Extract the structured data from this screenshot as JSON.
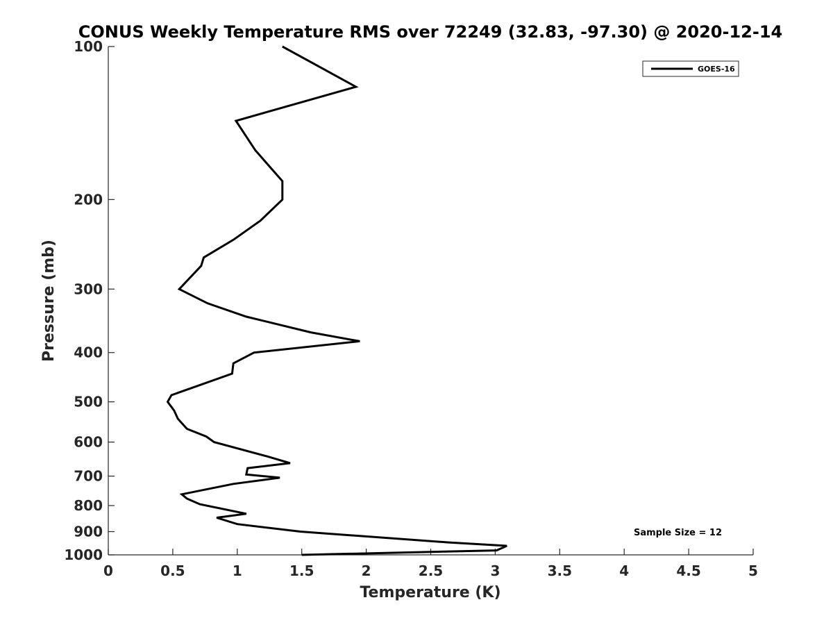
{
  "chart_data": {
    "type": "line",
    "title": "CONUS Weekly Temperature RMS over 72249 (32.83, -97.30) @ 2020-12-14",
    "xlabel": "Temperature (K)",
    "ylabel": "Pressure (mb)",
    "xlim": [
      0,
      5
    ],
    "ylim": [
      100,
      1000
    ],
    "yscale": "log",
    "yreversed": true,
    "grid": false,
    "legend_position": "top-right",
    "xticks": [
      0,
      0.5,
      1,
      1.5,
      2,
      2.5,
      3,
      3.5,
      4,
      4.5,
      5
    ],
    "xtick_labels": [
      "0",
      "0.5",
      "1",
      "1.5",
      "2",
      "2.5",
      "3",
      "3.5",
      "4",
      "4.5",
      "5"
    ],
    "yticks": [
      100,
      200,
      300,
      400,
      500,
      600,
      700,
      800,
      900,
      1000
    ],
    "ytick_labels": [
      "100",
      "200",
      "300",
      "400",
      "500",
      "600",
      "700",
      "800",
      "900",
      "1000"
    ],
    "series": [
      {
        "name": "GOES-16",
        "color": "#000000",
        "x": [
          1.35,
          1.92,
          0.99,
          1.14,
          1.35,
          1.35,
          1.18,
          0.97,
          0.74,
          0.72,
          0.55,
          0.77,
          1.07,
          1.57,
          1.95,
          1.13,
          0.97,
          0.96,
          0.49,
          0.46,
          0.51,
          0.54,
          0.61,
          0.76,
          0.82,
          1.23,
          1.41,
          1.08,
          1.07,
          1.33,
          0.97,
          0.57,
          0.61,
          0.71,
          1.07,
          0.84,
          1.0,
          1.49,
          2.63,
          3.09,
          3.01,
          1.5
        ],
        "y": [
          100,
          120,
          140,
          160,
          184,
          200,
          220,
          240,
          260,
          270,
          300,
          320,
          340,
          365,
          380,
          400,
          420,
          440,
          485,
          500,
          520,
          540,
          565,
          585,
          600,
          640,
          660,
          675,
          695,
          705,
          725,
          760,
          775,
          795,
          830,
          845,
          870,
          900,
          945,
          960,
          980,
          1000
        ]
      }
    ],
    "annotations": [
      "Sample Size = 12"
    ]
  }
}
